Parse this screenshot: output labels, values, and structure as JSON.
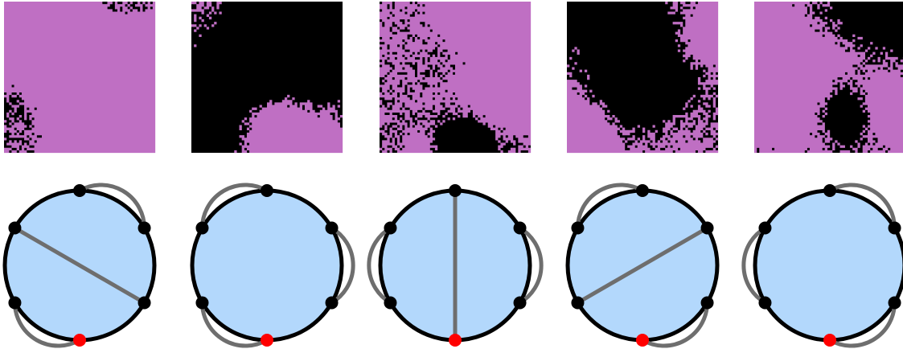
{
  "colors": {
    "cluster_fill": "#bf6fc3",
    "cluster_background": "#000000",
    "disk_fill": "#b3d8fc",
    "disk_outline": "#000000",
    "chord": "#6e6e6e",
    "boundary_point": "#000000",
    "root_point": "#ff0000"
  },
  "lattice": {
    "grid_cells": 60
  },
  "panels": [
    {
      "pattern": "cluster-pattern-1",
      "chords": [
        {
          "from": 0,
          "to": 1,
          "shape": "arc"
        },
        {
          "from": 2,
          "to": 5,
          "shape": "straight"
        },
        {
          "from": 3,
          "to": 4,
          "shape": "arc"
        }
      ]
    },
    {
      "pattern": "cluster-pattern-2",
      "chords": [
        {
          "from": 0,
          "to": 5,
          "shape": "arc"
        },
        {
          "from": 1,
          "to": 2,
          "shape": "arc"
        },
        {
          "from": 3,
          "to": 4,
          "shape": "arc"
        }
      ]
    },
    {
      "pattern": "cluster-pattern-3",
      "chords": [
        {
          "from": 0,
          "to": 3,
          "shape": "straight"
        },
        {
          "from": 1,
          "to": 2,
          "shape": "arc"
        },
        {
          "from": 4,
          "to": 5,
          "shape": "arc"
        }
      ]
    },
    {
      "pattern": "cluster-pattern-4",
      "chords": [
        {
          "from": 0,
          "to": 5,
          "shape": "arc"
        },
        {
          "from": 1,
          "to": 4,
          "shape": "straight"
        },
        {
          "from": 2,
          "to": 3,
          "shape": "arc"
        }
      ]
    },
    {
      "pattern": "cluster-pattern-5",
      "chords": [
        {
          "from": 0,
          "to": 1,
          "shape": "arc"
        },
        {
          "from": 2,
          "to": 3,
          "shape": "arc"
        },
        {
          "from": 4,
          "to": 5,
          "shape": "arc"
        }
      ]
    }
  ]
}
